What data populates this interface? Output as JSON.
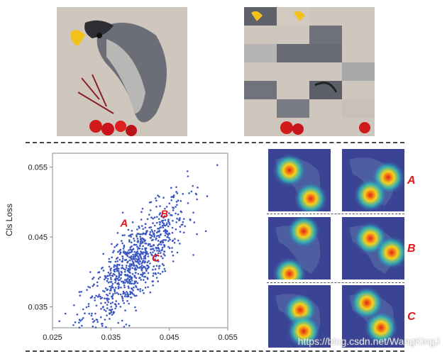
{
  "chart_data": {
    "type": "scatter",
    "xlabel": "",
    "ylabel": "Cls Loss",
    "xlim": [
      0.025,
      0.055
    ],
    "ylim": [
      0.032,
      0.057
    ],
    "xticks": [
      "0.025",
      "0.035",
      "0.045",
      "0.055"
    ],
    "yticks": [
      "0.035",
      "0.045",
      "0.055"
    ],
    "point_color": "#3a57c4",
    "grid": false,
    "annotations": [
      {
        "text": "A",
        "x": 0.0366,
        "y": 0.0465
      },
      {
        "text": "B",
        "x": 0.0435,
        "y": 0.0478
      },
      {
        "text": "C",
        "x": 0.042,
        "y": 0.0415
      }
    ]
  },
  "row_labels": [
    "A",
    "B",
    "C"
  ],
  "label_color": "#e0161c",
  "watermark": "https://blog.csdn.net/WangKingJ"
}
